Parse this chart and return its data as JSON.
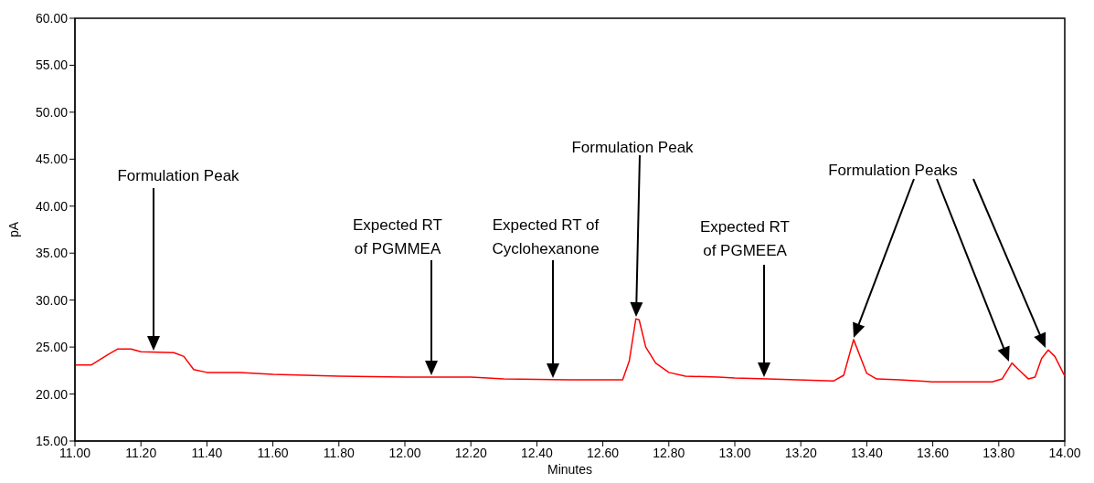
{
  "chart_data": {
    "type": "line",
    "xlabel": "Minutes",
    "ylabel": "pA",
    "x": [
      11.0,
      11.05,
      11.1,
      11.13,
      11.17,
      11.2,
      11.3,
      11.33,
      11.36,
      11.4,
      11.5,
      11.6,
      11.8,
      12.0,
      12.2,
      12.3,
      12.5,
      12.66,
      12.68,
      12.7,
      12.71,
      12.73,
      12.76,
      12.8,
      12.85,
      12.95,
      13.0,
      13.1,
      13.3,
      13.33,
      13.36,
      13.38,
      13.4,
      13.43,
      13.5,
      13.6,
      13.78,
      13.81,
      13.84,
      13.86,
      13.89,
      13.91,
      13.93,
      13.95,
      13.97,
      14.0
    ],
    "series": [
      {
        "color": "#ff0000",
        "values": [
          23.1,
          23.1,
          24.2,
          24.8,
          24.8,
          24.5,
          24.4,
          24.0,
          22.6,
          22.3,
          22.3,
          22.1,
          21.9,
          21.8,
          21.8,
          21.6,
          21.5,
          21.5,
          23.5,
          28.0,
          27.9,
          25.0,
          23.3,
          22.3,
          21.9,
          21.8,
          21.7,
          21.6,
          21.4,
          22.0,
          25.8,
          24.0,
          22.2,
          21.6,
          21.5,
          21.3,
          21.3,
          21.6,
          23.3,
          22.6,
          21.6,
          21.8,
          23.8,
          24.7,
          24.0,
          21.9
        ]
      }
    ],
    "xlim": [
      11,
      14
    ],
    "xticks": [
      {
        "value": 11,
        "label": "11.00"
      },
      {
        "value": 11.2,
        "label": "11.20"
      },
      {
        "value": 11.4,
        "label": "11.40"
      },
      {
        "value": 11.6,
        "label": "11.60"
      },
      {
        "value": 11.8,
        "label": "11.80"
      },
      {
        "value": 12,
        "label": "12.00"
      },
      {
        "value": 12.2,
        "label": "12.20"
      },
      {
        "value": 12.4,
        "label": "12.40"
      },
      {
        "value": 12.6,
        "label": "12.60"
      },
      {
        "value": 12.8,
        "label": "12.80"
      },
      {
        "value": 13,
        "label": "13.00"
      },
      {
        "value": 13.2,
        "label": "13.20"
      },
      {
        "value": 13.4,
        "label": "13.40"
      },
      {
        "value": 13.6,
        "label": "13.60"
      },
      {
        "value": 13.8,
        "label": "13.80"
      },
      {
        "value": 14,
        "label": "14.00"
      }
    ],
    "ylim": [
      15,
      60
    ],
    "yticks": [
      {
        "value": 15,
        "label": "15.00"
      },
      {
        "value": 20,
        "label": "20.00"
      },
      {
        "value": 25,
        "label": "25.00"
      },
      {
        "value": 30,
        "label": "30.00"
      },
      {
        "value": 35,
        "label": "35.00"
      },
      {
        "value": 40,
        "label": "40.00"
      },
      {
        "value": 45,
        "label": "45.00"
      },
      {
        "value": 50,
        "label": "50.00"
      },
      {
        "value": 55,
        "label": "55.00"
      },
      {
        "value": 60,
        "label": "60.00"
      }
    ],
    "grid": false,
    "legend": false,
    "marker": "none",
    "line_style": "solid",
    "annotations": [
      "Formulation Peak",
      "Expected RT\nof PGMMEA",
      "Expected RT of\nCyclohexanone",
      "Formulation Peak",
      "Expected RT\nof PGMEEA",
      "Formulation Peaks"
    ]
  }
}
